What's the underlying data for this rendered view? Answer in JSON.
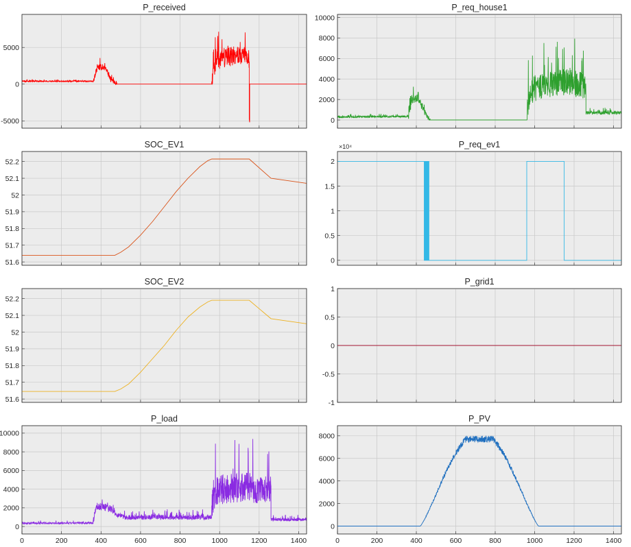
{
  "figure": {
    "background": "#ffffff",
    "axes_background": "#ececec",
    "grid": true,
    "x_ticks": [
      0,
      200,
      400,
      600,
      800,
      1000,
      1200,
      1400
    ],
    "x_tick_labels": [
      "0",
      "200",
      "400",
      "600",
      "800",
      "1000",
      "1200",
      "1400"
    ]
  },
  "chart_data": [
    {
      "id": "p_received",
      "type": "line",
      "title": "P_received",
      "color": "#ff0000",
      "xlim": [
        0,
        1440
      ],
      "ylim": [
        -6000,
        9500
      ],
      "yticks": [
        -5000,
        0,
        5000
      ],
      "ytick_labels": [
        "-5000",
        "0",
        "5000"
      ],
      "noise_seed": 11,
      "segments": [
        {
          "x": [
            0,
            360
          ],
          "y": [
            400,
            400
          ],
          "noise": 90
        },
        {
          "x": [
            360,
            380,
            410,
            430,
            450
          ],
          "y": [
            400,
            2200,
            2400,
            1800,
            700
          ],
          "noise": 450
        },
        {
          "x": [
            450,
            480
          ],
          "y": [
            700,
            0
          ],
          "noise": 300
        },
        {
          "x": [
            480,
            960
          ],
          "y": [
            0,
            0
          ],
          "noise": 0
        },
        {
          "x": [
            960,
            980,
            1050,
            1100,
            1150
          ],
          "y": [
            500,
            3200,
            3800,
            4200,
            3500
          ],
          "noise": 1400
        },
        {
          "x": [
            1150,
            1150,
            1152,
            1152
          ],
          "y": [
            3000,
            -4800,
            -5200,
            -200
          ],
          "noise": 0
        },
        {
          "x": [
            1152,
            1440
          ],
          "y": [
            0,
            0
          ],
          "noise": 0
        }
      ]
    },
    {
      "id": "p_req_house1",
      "type": "line",
      "title": "P_req_house1",
      "color": "#2ea02e",
      "xlim": [
        0,
        1440
      ],
      "ylim": [
        -800,
        10300
      ],
      "yticks": [
        0,
        2000,
        4000,
        6000,
        8000,
        10000
      ],
      "ytick_labels": [
        "0",
        "2000",
        "4000",
        "6000",
        "8000",
        "10000"
      ],
      "noise_seed": 23,
      "segments": [
        {
          "x": [
            0,
            360
          ],
          "y": [
            300,
            350
          ],
          "noise": 90
        },
        {
          "x": [
            360,
            380,
            410,
            430,
            450
          ],
          "y": [
            400,
            2000,
            2200,
            1300,
            600
          ],
          "noise": 420
        },
        {
          "x": [
            450,
            470
          ],
          "y": [
            500,
            0
          ],
          "noise": 250
        },
        {
          "x": [
            470,
            960
          ],
          "y": [
            0,
            0
          ],
          "noise": 0
        },
        {
          "x": [
            960,
            980,
            1050,
            1150,
            1260
          ],
          "y": [
            1000,
            3000,
            3500,
            3800,
            3400
          ],
          "noise": 1400
        },
        {
          "x": [
            1260,
            1440
          ],
          "y": [
            700,
            700
          ],
          "noise": 160
        }
      ]
    },
    {
      "id": "soc_ev1",
      "type": "line",
      "title": "SOC_EV1",
      "color": "#d95319",
      "xlim": [
        0,
        1440
      ],
      "ylim": [
        51.58,
        52.26
      ],
      "yticks": [
        51.6,
        51.7,
        51.8,
        51.9,
        52,
        52.1,
        52.2
      ],
      "ytick_labels": [
        "51.6",
        "51.7",
        "51.8",
        "51.9",
        "52",
        "52.1",
        "52.2"
      ],
      "noise_seed": 0,
      "segments": [
        {
          "x": [
            0,
            470
          ],
          "y": [
            51.64,
            51.64
          ],
          "noise": 0
        },
        {
          "x": [
            470,
            500,
            540,
            600,
            660,
            720,
            780,
            840,
            900,
            940,
            960
          ],
          "y": [
            51.64,
            51.658,
            51.69,
            51.76,
            51.84,
            51.93,
            52.02,
            52.1,
            52.17,
            52.205,
            52.215
          ],
          "noise": 0
        },
        {
          "x": [
            960,
            1150,
            1260,
            1440
          ],
          "y": [
            52.215,
            52.215,
            52.1,
            52.07
          ],
          "noise": 0
        }
      ]
    },
    {
      "id": "p_req_ev1",
      "type": "line",
      "title": "P_req_ev1",
      "color": "#33b8e6",
      "xlim": [
        0,
        1440
      ],
      "ylim": [
        -0.1,
        2.2
      ],
      "yticks": [
        0,
        0.5,
        1,
        1.5,
        2
      ],
      "ytick_labels": [
        "0",
        "0.5",
        "1",
        "1.5",
        "2"
      ],
      "exponent": "×10⁴",
      "noise_seed": 0,
      "segments": [
        {
          "x": [
            0,
            440,
            440,
            443,
            443,
            446,
            446,
            449,
            449,
            452,
            452,
            455,
            455,
            458,
            458,
            461,
            461,
            464,
            464,
            467,
            467,
            960,
            960,
            1150,
            1150,
            1440
          ],
          "y": [
            2,
            2,
            0,
            0,
            2,
            2,
            0,
            0,
            2,
            2,
            0,
            0,
            2,
            2,
            0,
            0,
            2,
            2,
            0,
            0,
            0,
            0,
            2,
            2,
            0,
            0
          ],
          "noise": 0
        }
      ]
    },
    {
      "id": "soc_ev2",
      "type": "line",
      "title": "SOC_EV2",
      "color": "#edb120",
      "xlim": [
        0,
        1440
      ],
      "ylim": [
        51.58,
        52.26
      ],
      "yticks": [
        51.6,
        51.7,
        51.8,
        51.9,
        52,
        52.1,
        52.2
      ],
      "ytick_labels": [
        "51.6",
        "51.7",
        "51.8",
        "51.9",
        "52",
        "52.1",
        "52.2"
      ],
      "noise_seed": 0,
      "segments": [
        {
          "x": [
            0,
            470
          ],
          "y": [
            51.645,
            51.645
          ],
          "noise": 0
        },
        {
          "x": [
            470,
            500,
            540,
            600,
            660,
            720,
            780,
            840,
            900,
            940,
            960
          ],
          "y": [
            51.645,
            51.66,
            51.69,
            51.76,
            51.84,
            51.92,
            52.01,
            52.09,
            52.15,
            52.18,
            52.19
          ],
          "noise": 0
        },
        {
          "x": [
            960,
            1150,
            1260,
            1440
          ],
          "y": [
            52.19,
            52.19,
            52.08,
            52.05
          ],
          "noise": 0
        }
      ]
    },
    {
      "id": "p_grid1",
      "type": "line",
      "title": "P_grid1",
      "color": "#a2142f",
      "xlim": [
        0,
        1440
      ],
      "ylim": [
        -1,
        1
      ],
      "yticks": [
        -1,
        -0.5,
        0,
        0.5,
        1
      ],
      "ytick_labels": [
        "-1",
        "-0.5",
        "0",
        "0.5",
        "1"
      ],
      "noise_seed": 0,
      "segments": [
        {
          "x": [
            0,
            1440
          ],
          "y": [
            0,
            0
          ],
          "noise": 0
        }
      ]
    },
    {
      "id": "p_load",
      "type": "line",
      "title": "P_load",
      "color": "#8a2be2",
      "xlim": [
        0,
        1440
      ],
      "ylim": [
        -800,
        10800
      ],
      "yticks": [
        0,
        2000,
        4000,
        6000,
        8000,
        10000
      ],
      "ytick_labels": [
        "0",
        "2000",
        "4000",
        "6000",
        "8000",
        "10000"
      ],
      "noise_seed": 37,
      "segments": [
        {
          "x": [
            0,
            360
          ],
          "y": [
            350,
            380
          ],
          "noise": 90
        },
        {
          "x": [
            360,
            380,
            420,
            460,
            470
          ],
          "y": [
            700,
            2200,
            2100,
            1800,
            1600
          ],
          "noise": 420
        },
        {
          "x": [
            470,
            520,
            960
          ],
          "y": [
            1300,
            1000,
            1000
          ],
          "noise": 280
        },
        {
          "x": [
            960,
            980,
            1050,
            1150,
            1260
          ],
          "y": [
            2500,
            4000,
            4200,
            4300,
            4000
          ],
          "noise": 1700
        },
        {
          "x": [
            1260,
            1440
          ],
          "y": [
            750,
            750
          ],
          "noise": 170
        }
      ]
    },
    {
      "id": "p_pv",
      "type": "line",
      "title": "P_PV",
      "color": "#1f6fbf",
      "xlim": [
        0,
        1440
      ],
      "ylim": [
        -700,
        8900
      ],
      "yticks": [
        0,
        2000,
        4000,
        6000,
        8000
      ],
      "ytick_labels": [
        "0",
        "2000",
        "4000",
        "6000",
        "8000"
      ],
      "noise_seed": 53,
      "pv": {
        "start": 420,
        "end": 1020,
        "peak": 8000,
        "noise": 600
      }
    }
  ]
}
